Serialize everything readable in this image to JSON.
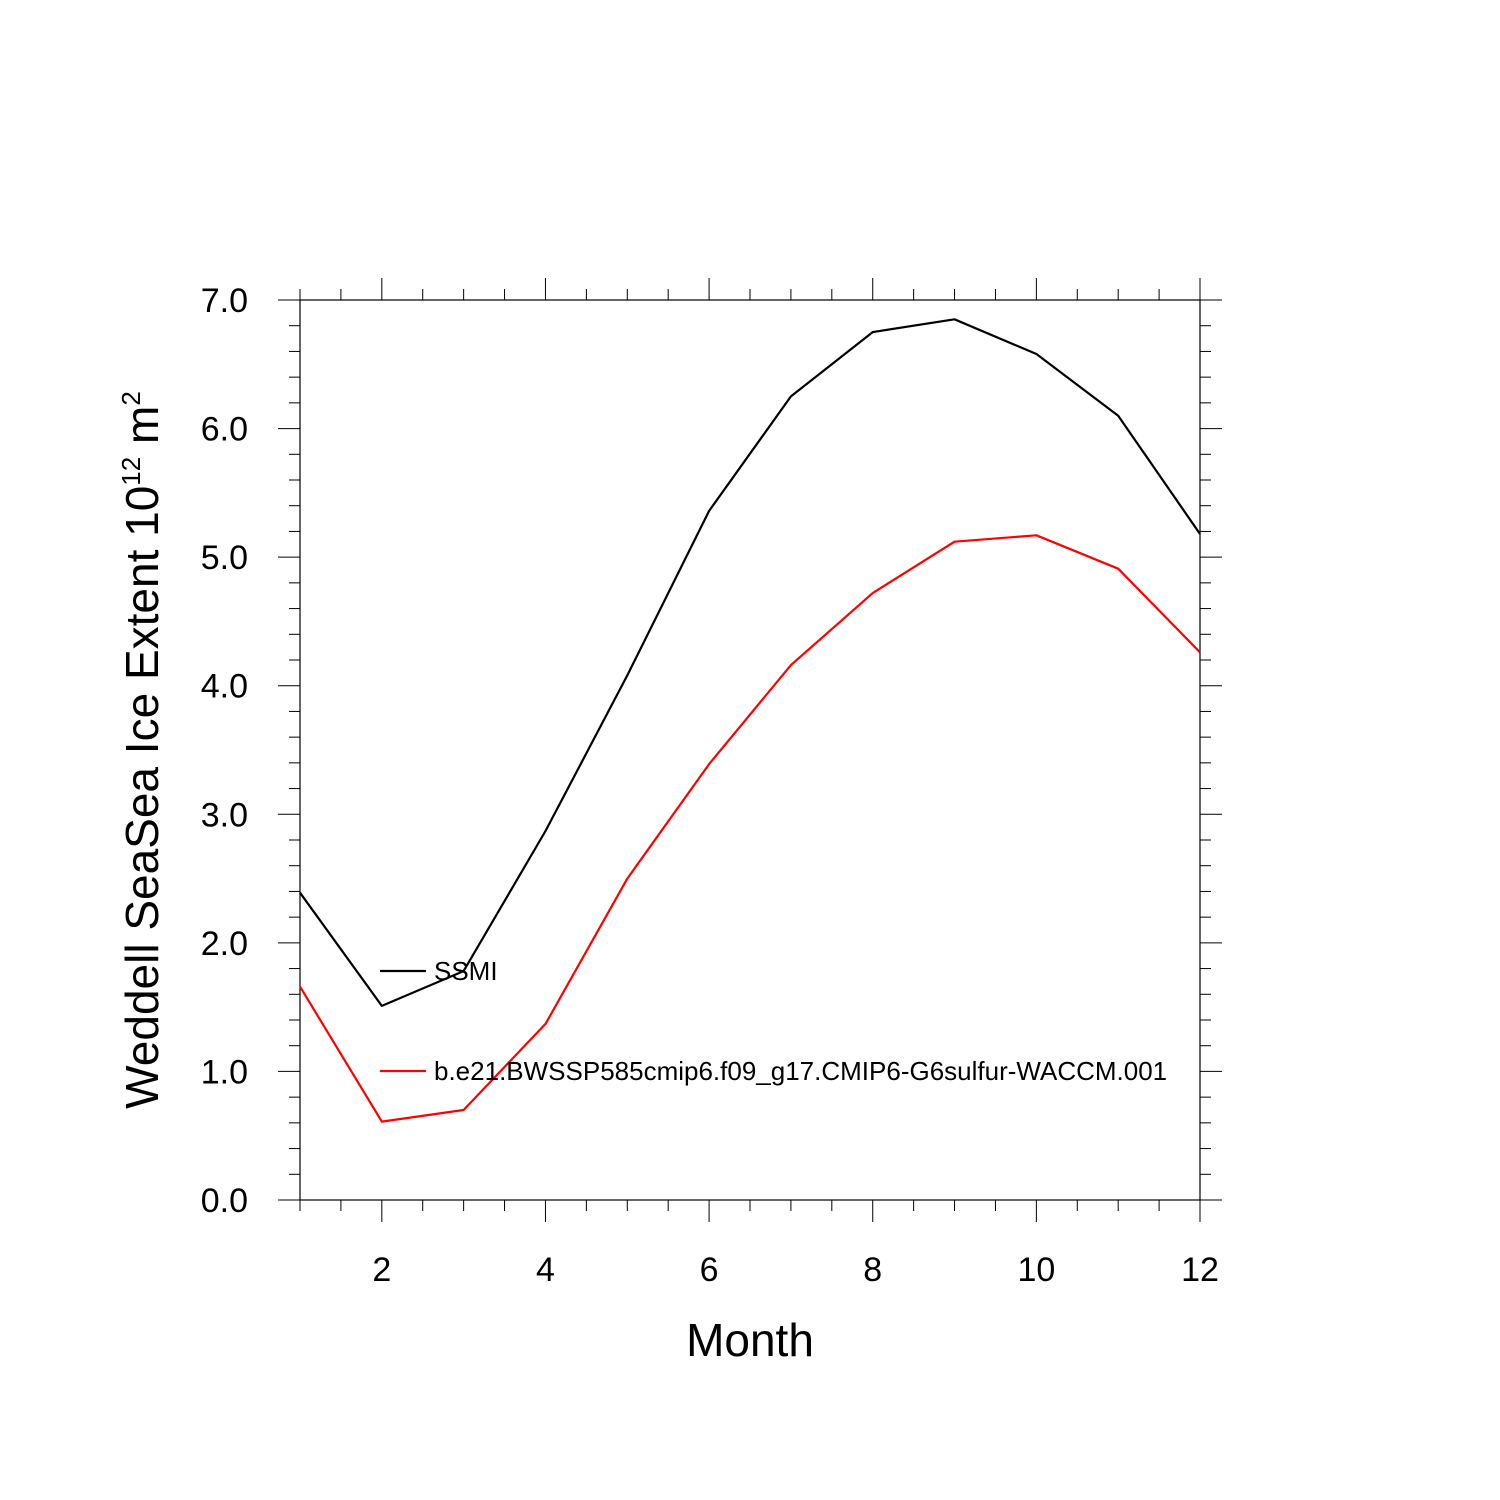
{
  "chart_data": {
    "type": "line",
    "xlabel": "Month",
    "ylabel": {
      "text": "Weddell SeaSea Ice Extent 10",
      "exp": "12",
      "unit": " m",
      "unit_exp": "2"
    },
    "xlim": [
      1,
      12
    ],
    "ylim": [
      0,
      7
    ],
    "x_ticks": [
      2,
      4,
      6,
      8,
      10,
      12
    ],
    "x_tick_labels": [
      "2",
      "4",
      "6",
      "8",
      "10",
      "12"
    ],
    "y_ticks": [
      0,
      1,
      2,
      3,
      4,
      5,
      6,
      7
    ],
    "y_tick_labels": [
      "0.0",
      "1.0",
      "2.0",
      "3.0",
      "4.0",
      "5.0",
      "6.0",
      "7.0"
    ],
    "x": [
      1,
      2,
      3,
      4,
      5,
      6,
      7,
      8,
      9,
      10,
      11,
      12
    ],
    "series": [
      {
        "name": "SSMI",
        "color": "#000000",
        "values": [
          2.39,
          1.51,
          1.78,
          2.87,
          4.08,
          5.36,
          6.25,
          6.75,
          6.85,
          6.58,
          6.1,
          5.18
        ]
      },
      {
        "name": "b.e21.BWSSP585cmip6.f09_g17.CMIP6-G6sulfur-WACCM.001",
        "color": "#ff0000",
        "values": [
          1.66,
          0.61,
          0.7,
          1.37,
          2.5,
          3.39,
          4.16,
          4.72,
          5.12,
          5.17,
          4.91,
          4.26
        ]
      }
    ],
    "legend": "inside-lower-left",
    "grid": false
  }
}
